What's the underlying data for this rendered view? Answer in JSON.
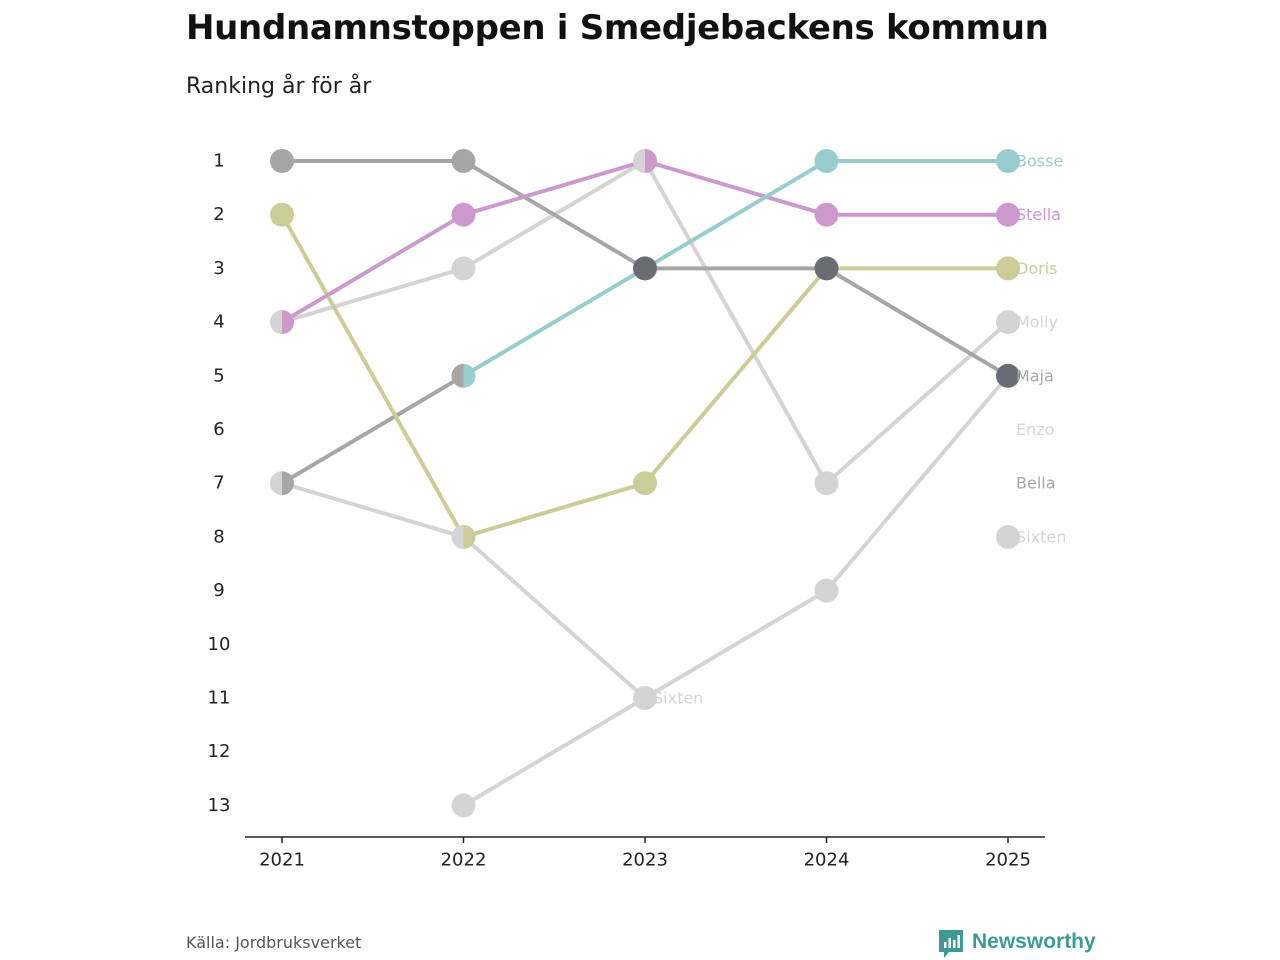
{
  "title": "Hundnamnstoppen i Smedjebackens kommun",
  "subtitle": "Ranking år för år",
  "source": "Källa: Jordbruksverket",
  "brand": {
    "name": "Newsworthy",
    "icon": "newsworthy-logo-icon",
    "color": "#3d9a96"
  },
  "chart_data": {
    "type": "line",
    "subtype": "bump",
    "title": "Hundnamnstoppen i Smedjebackens kommun",
    "subtitle": "Ranking år för år",
    "xlabel": "",
    "ylabel": "",
    "x": [
      2021,
      2022,
      2023,
      2024,
      2025
    ],
    "x_tick_labels": [
      "2021",
      "2022",
      "2023",
      "2024",
      "2025"
    ],
    "y_ticks": [
      1,
      2,
      3,
      4,
      5,
      6,
      7,
      8,
      9,
      10,
      11,
      12,
      13
    ],
    "y_tick_labels": [
      "1",
      "2",
      "3",
      "4",
      "5",
      "6",
      "7",
      "8",
      "9",
      "10",
      "11",
      "12",
      "13"
    ],
    "ylim": [
      13,
      1
    ],
    "y_inverted": true,
    "grid": false,
    "series": [
      {
        "name": "Molly",
        "color": "#d4d4d4",
        "values": [
          4,
          3,
          1,
          7,
          4
        ]
      },
      {
        "name": "Enzo",
        "color": "#d4d4d4",
        "values": [
          7,
          8,
          11,
          null,
          null
        ]
      },
      {
        "name": "Sixten",
        "color": "#d4d4d4",
        "values": [
          null,
          13,
          11,
          9,
          5
        ],
        "inline_label": {
          "text": "Sixten",
          "x": 2023,
          "y": 11
        }
      },
      {
        "name": "Sixten",
        "color": "#d4d4d4",
        "values": [
          null,
          null,
          null,
          null,
          8
        ],
        "end_label": "Sixten"
      },
      {
        "name": "Bella",
        "color": "#a6a6a6",
        "values": [
          7,
          5,
          null,
          null,
          null
        ]
      },
      {
        "name": "Maja",
        "color": "#a6a6a6",
        "values": [
          1,
          1,
          3,
          3,
          5
        ]
      },
      {
        "name": "Doris",
        "color": "#cccc99",
        "values": [
          2,
          8,
          7,
          3,
          3
        ]
      },
      {
        "name": "Stella",
        "color": "#cc99cc",
        "values": [
          4,
          2,
          1,
          2,
          2
        ]
      },
      {
        "name": "Bosse",
        "color": "#99cccc",
        "values": [
          null,
          5,
          3,
          1,
          1
        ]
      }
    ],
    "overlap_color": "#6b6b73",
    "overlap_points": [
      {
        "x": 2023,
        "y": 3
      },
      {
        "x": 2024,
        "y": 3
      },
      {
        "x": 2025,
        "y": 5
      }
    ],
    "end_labels": [
      {
        "text": "Bosse",
        "rank": 1,
        "color": "#99cccc"
      },
      {
        "text": "Stella",
        "rank": 2,
        "color": "#cc99cc"
      },
      {
        "text": "Doris",
        "rank": 3,
        "color": "#cccc99"
      },
      {
        "text": "Molly",
        "rank": 4,
        "color": "#d4d4d4"
      },
      {
        "text": "Maja",
        "rank": 5,
        "color": "#a6a6a6"
      },
      {
        "text": "Enzo",
        "rank": 6,
        "color": "#d4d4d4"
      },
      {
        "text": "Bella",
        "rank": 7,
        "color": "#a6a6a6"
      },
      {
        "text": "Sixten",
        "rank": 8,
        "color": "#d4d4d4"
      }
    ]
  }
}
